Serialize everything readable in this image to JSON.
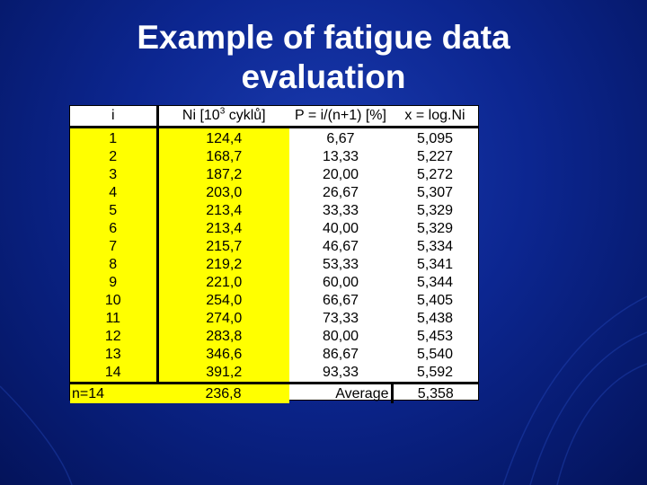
{
  "title": {
    "line1": "Example of fatigue data",
    "line2": "evaluation"
  },
  "table": {
    "headers": {
      "i": "i",
      "ni_prefix": "Ni [10",
      "ni_exp": "3",
      "ni_suffix": " cyklů]",
      "p": "P = i/(n+1) [%]",
      "x": "x = log.Ni"
    },
    "rows": [
      [
        "1",
        "124,4",
        "6,67",
        "5,095"
      ],
      [
        "2",
        "168,7",
        "13,33",
        "5,227"
      ],
      [
        "3",
        "187,2",
        "20,00",
        "5,272"
      ],
      [
        "4",
        "203,0",
        "26,67",
        "5,307"
      ],
      [
        "5",
        "213,4",
        "33,33",
        "5,329"
      ],
      [
        "6",
        "213,4",
        "40,00",
        "5,329"
      ],
      [
        "7",
        "215,7",
        "46,67",
        "5,334"
      ],
      [
        "8",
        "219,2",
        "53,33",
        "5,341"
      ],
      [
        "9",
        "221,0",
        "60,00",
        "5,344"
      ],
      [
        "10",
        "254,0",
        "66,67",
        "5,405"
      ],
      [
        "11",
        "274,0",
        "73,33",
        "5,438"
      ],
      [
        "12",
        "283,8",
        "80,00",
        "5,453"
      ],
      [
        "13",
        "346,6",
        "86,67",
        "5,540"
      ],
      [
        "14",
        "391,2",
        "93,33",
        "5,592"
      ]
    ],
    "footer": {
      "n": "n=14",
      "ni_avg": "236,8",
      "avg_label": "Average",
      "x_avg": "5,358"
    }
  }
}
